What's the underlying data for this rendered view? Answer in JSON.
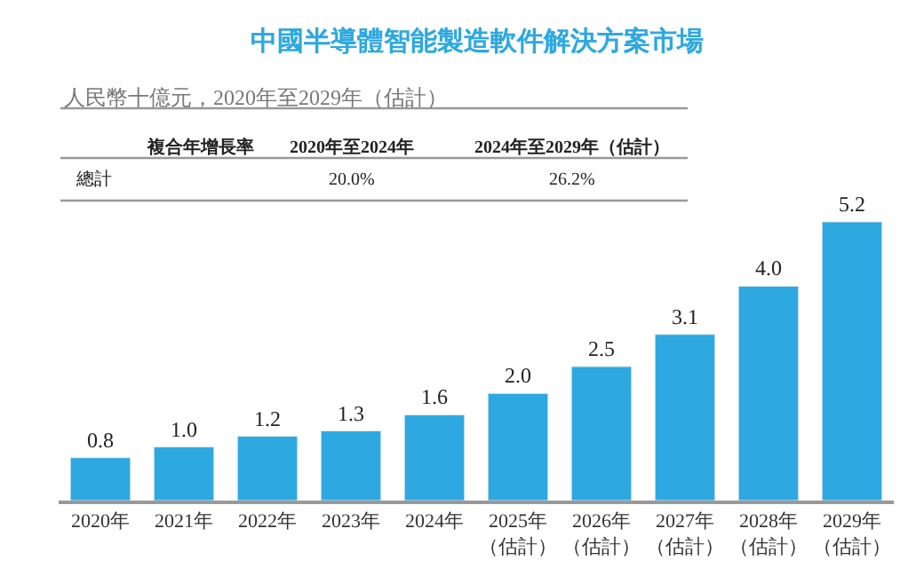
{
  "chart_data": {
    "type": "bar",
    "title": "中國半導體智能製造軟件解決方案市場",
    "subtitle": "人民幣十億元，2020年至2029年（估計）",
    "categories": [
      "2020年",
      "2021年",
      "2022年",
      "2023年",
      "2024年",
      "2025年（估計）",
      "2026年（估計）",
      "2027年（估計）",
      "2028年（估計）",
      "2029年（估計）"
    ],
    "values": [
      0.8,
      1.0,
      1.2,
      1.3,
      1.6,
      2.0,
      2.5,
      3.1,
      4.0,
      5.2
    ],
    "value_labels": [
      "0.8",
      "1.0",
      "1.2",
      "1.3",
      "1.6",
      "2.0",
      "2.5",
      "3.1",
      "4.0",
      "5.2"
    ],
    "color": "#2ea8e0",
    "annotations": [
      "複合年增長率",
      "2020年至2024年",
      "2024年至2029年（估計）",
      "總計",
      "20.0%",
      "26.2%"
    ],
    "legend": false
  }
}
